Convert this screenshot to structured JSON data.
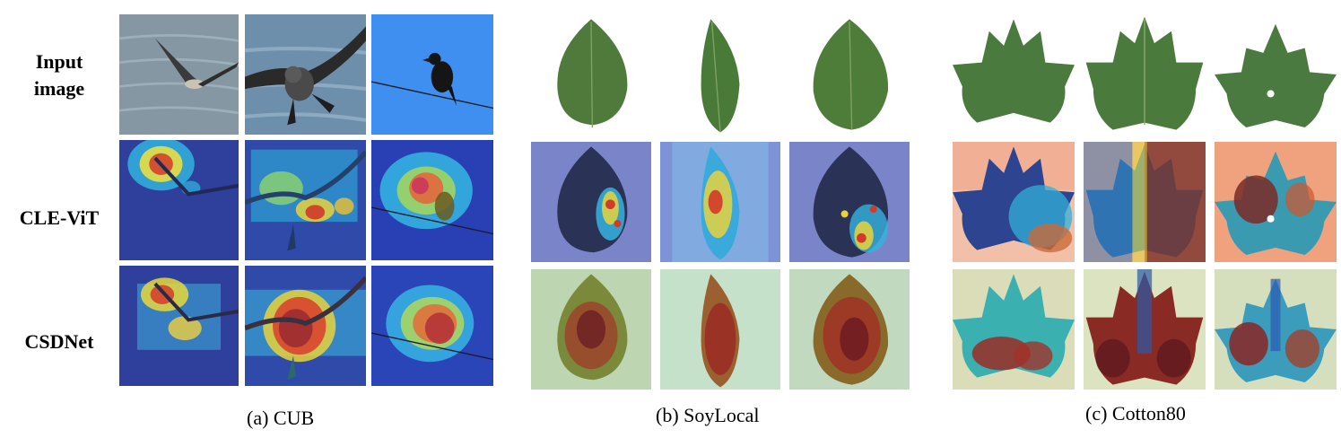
{
  "row_labels": {
    "input": [
      "Input",
      "image"
    ],
    "clevit": "CLE-ViT",
    "csdnet": "CSDNet"
  },
  "captions": {
    "cub": "(a) CUB",
    "soylocal": "(b) SoyLocal",
    "cotton80": "(c) Cotton80"
  }
}
